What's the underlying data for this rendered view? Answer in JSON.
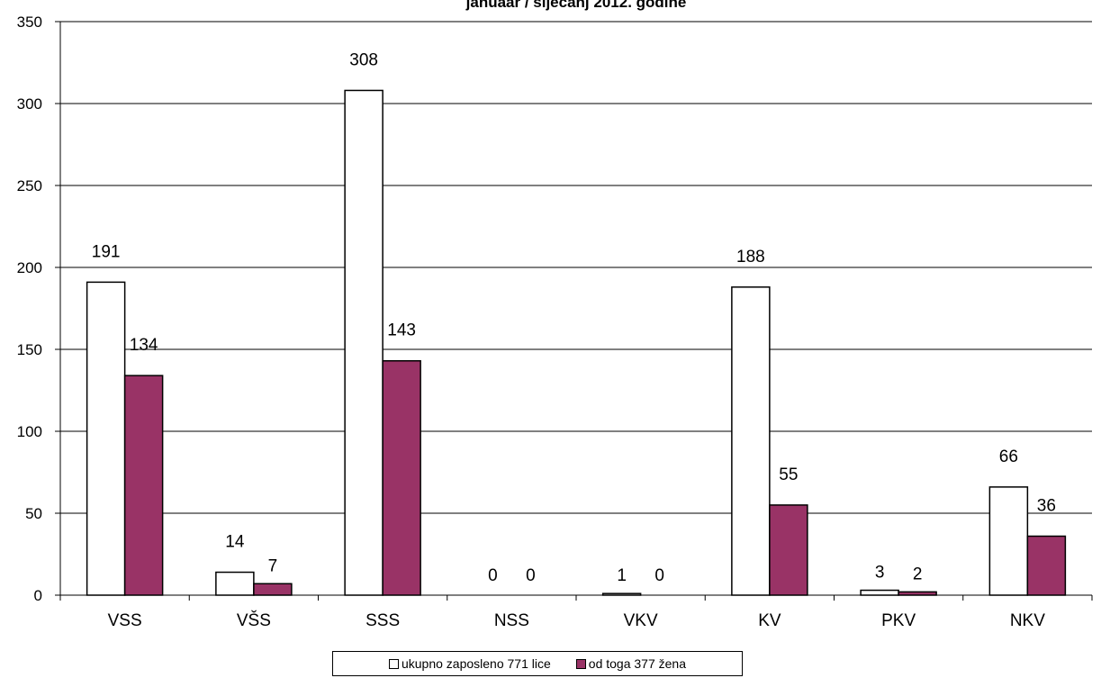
{
  "chart_data": {
    "type": "bar",
    "title": "januaar / siječanj 2012. godine",
    "categories": [
      "VSS",
      "VŠS",
      "SSS",
      "NSS",
      "VKV",
      "KV",
      "PKV",
      "NKV"
    ],
    "series": [
      {
        "name": "ukupno zaposleno 771 lice",
        "color": "#ffffff",
        "values": [
          191,
          14,
          308,
          0,
          1,
          188,
          3,
          66
        ]
      },
      {
        "name": "od toga 377 žena",
        "color": "#993366",
        "values": [
          134,
          7,
          143,
          0,
          0,
          55,
          2,
          36
        ]
      }
    ],
    "ylim": [
      0,
      350
    ],
    "yticks": [
      0,
      50,
      100,
      150,
      200,
      250,
      300,
      350
    ],
    "grid": true,
    "legend_position": "bottom",
    "data_labels": true
  }
}
